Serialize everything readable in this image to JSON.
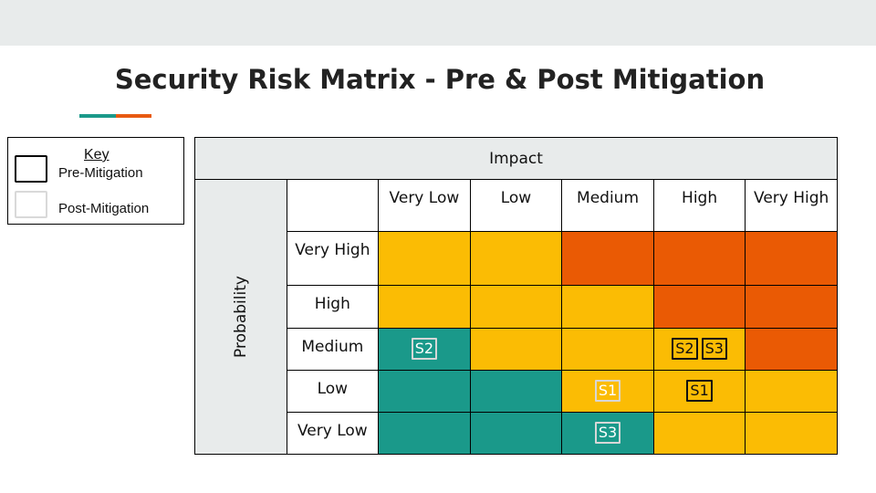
{
  "title": "Security Risk Matrix - Pre & Post Mitigation",
  "colors": {
    "green": "#1a998a",
    "yellow": "#fbbc04",
    "orange": "#ea5a04",
    "header_gray": "#e8ebeb"
  },
  "key": {
    "title": "Key",
    "pre_label": "Pre-Mitigation",
    "post_label": "Post-Mitigation"
  },
  "matrix": {
    "impact_label": "Impact",
    "probability_label": "Probability",
    "impact_levels": [
      "Very Low",
      "Low",
      "Medium",
      "High",
      "Very High"
    ],
    "rows": [
      {
        "label": "Very High",
        "cells": [
          {
            "color": "yellow",
            "items": []
          },
          {
            "color": "yellow",
            "items": []
          },
          {
            "color": "orange",
            "items": []
          },
          {
            "color": "orange",
            "items": []
          },
          {
            "color": "orange",
            "items": []
          }
        ]
      },
      {
        "label": "High",
        "cells": [
          {
            "color": "yellow",
            "items": []
          },
          {
            "color": "yellow",
            "items": []
          },
          {
            "color": "yellow",
            "items": []
          },
          {
            "color": "orange",
            "items": []
          },
          {
            "color": "orange",
            "items": []
          }
        ]
      },
      {
        "label": "Medium",
        "cells": [
          {
            "color": "green",
            "items": [
              {
                "text": "S2",
                "kind": "post"
              }
            ]
          },
          {
            "color": "yellow",
            "items": []
          },
          {
            "color": "yellow",
            "items": []
          },
          {
            "color": "yellow",
            "items": [
              {
                "text": "S2",
                "kind": "pre"
              },
              {
                "text": "S3",
                "kind": "pre"
              }
            ]
          },
          {
            "color": "orange",
            "items": []
          }
        ]
      },
      {
        "label": "Low",
        "cells": [
          {
            "color": "green",
            "items": []
          },
          {
            "color": "green",
            "items": []
          },
          {
            "color": "yellow",
            "items": [
              {
                "text": "S1",
                "kind": "post"
              }
            ]
          },
          {
            "color": "yellow",
            "items": [
              {
                "text": "S1",
                "kind": "pre"
              }
            ]
          },
          {
            "color": "yellow",
            "items": []
          }
        ]
      },
      {
        "label": "Very Low",
        "cells": [
          {
            "color": "green",
            "items": []
          },
          {
            "color": "green",
            "items": []
          },
          {
            "color": "green",
            "items": [
              {
                "text": "S3",
                "kind": "post"
              }
            ]
          },
          {
            "color": "yellow",
            "items": []
          },
          {
            "color": "yellow",
            "items": []
          }
        ]
      }
    ]
  }
}
